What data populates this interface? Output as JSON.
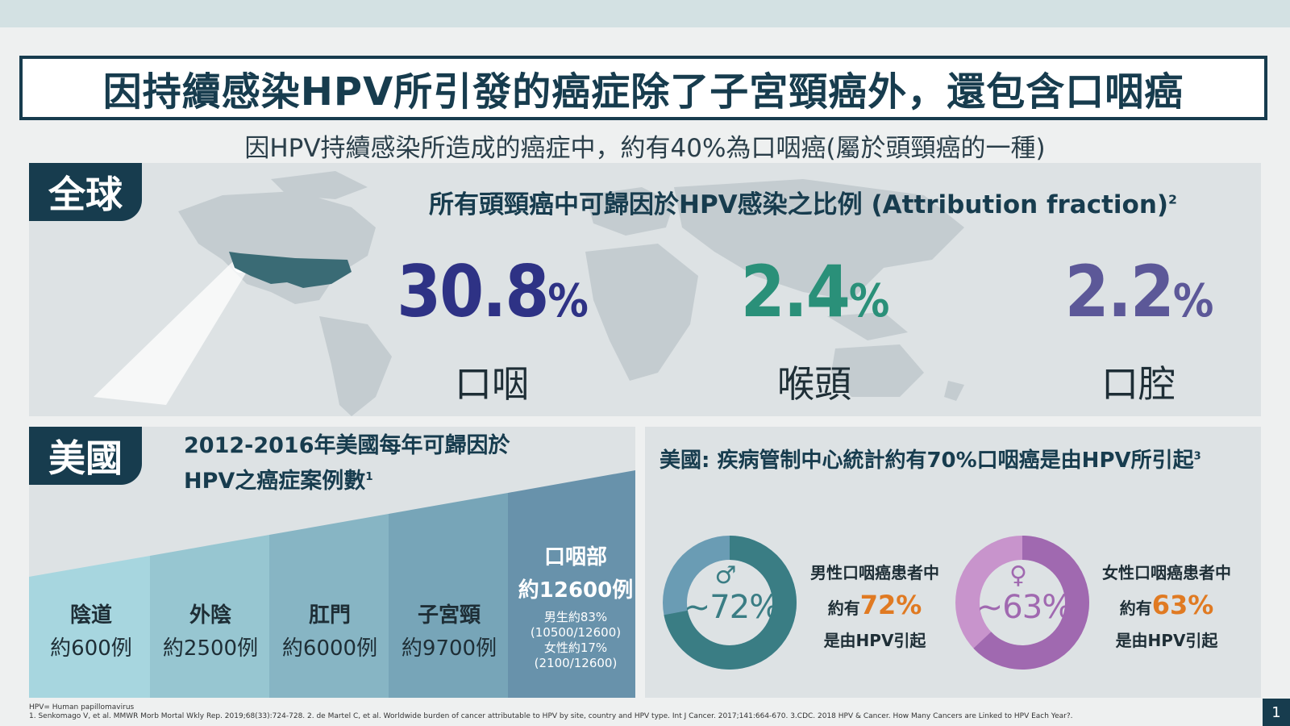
{
  "title": "因持續感染HPV所引發的癌症除了子宮頸癌外，還包含口咽癌",
  "subtitle": "因HPV持續感染所造成的癌症中，約有40%為口咽癌(屬於頭頸癌的一種)",
  "global": {
    "tag": "全球",
    "heading": "所有頭頸癌中可歸因於HPV感染之比例 (Attribution fraction)",
    "heading_ref": "2",
    "stats": [
      {
        "value": "30.8",
        "unit": "%",
        "label": "口咽",
        "color": "#2e3285"
      },
      {
        "value": "2.4",
        "unit": "%",
        "label": "喉頭",
        "color": "#2a9079"
      },
      {
        "value": "2.2",
        "unit": "%",
        "label": "口腔",
        "color": "#5c5898"
      }
    ]
  },
  "us": {
    "tag": "美國",
    "heading_line1": "2012-2016年美國每年可歸因於",
    "heading_line2": "HPV之癌症案例數",
    "heading_ref": "1",
    "steps": [
      {
        "name": "陰道",
        "count": "約600例",
        "color": "#a7d6df"
      },
      {
        "name": "外陰",
        "count": "約2500例",
        "color": "#97c6d1"
      },
      {
        "name": "肛門",
        "count": "約6000例",
        "color": "#87b5c4"
      },
      {
        "name": "子宮頸",
        "count": "約9700例",
        "color": "#77a5b8"
      },
      {
        "name": "口咽部",
        "count": "約12600例",
        "color": "#6892ab",
        "detail_male": "男生約83%",
        "detail_male_frac": "(10500/12600)",
        "detail_female": "女性約17%",
        "detail_female_frac": "(2100/12600)"
      }
    ],
    "cdc_heading": "美國: 疾病管制中心統計約有70%口咽癌是由HPV所引起",
    "cdc_ref": "3",
    "male": {
      "symbol": "♂",
      "donut_label": "~72%",
      "line1": "男性口咽癌患者中",
      "line2_prefix": "約有",
      "line2_value": "72%",
      "line3": "是由HPV引起",
      "fraction": 0.72,
      "color_main": "#3a7d84",
      "color_rest": "#6a9cb4"
    },
    "female": {
      "symbol": "♀",
      "donut_label": "~63%",
      "line1": "女性口咽癌患者中",
      "line2_prefix": "約有",
      "line2_value": "63%",
      "line3": "是由HPV引起",
      "fraction": 0.63,
      "color_main": "#a069b0",
      "color_rest": "#c894cc"
    }
  },
  "footnotes": {
    "line1": "HPV= Human papillomavirus",
    "line2": "1. Senkomago V, et al. MMWR Morb Mortal Wkly Rep. 2019;68(33):724-728.   2. de Martel C, et al. Worldwide burden of cancer attributable to HPV by site, country and HPV type. Int J Cancer. 2017;141:664-670.   3.CDC. 2018 HPV & Cancer. How Many Cancers are Linked to HPV Each Year?."
  },
  "page_number": "1"
}
